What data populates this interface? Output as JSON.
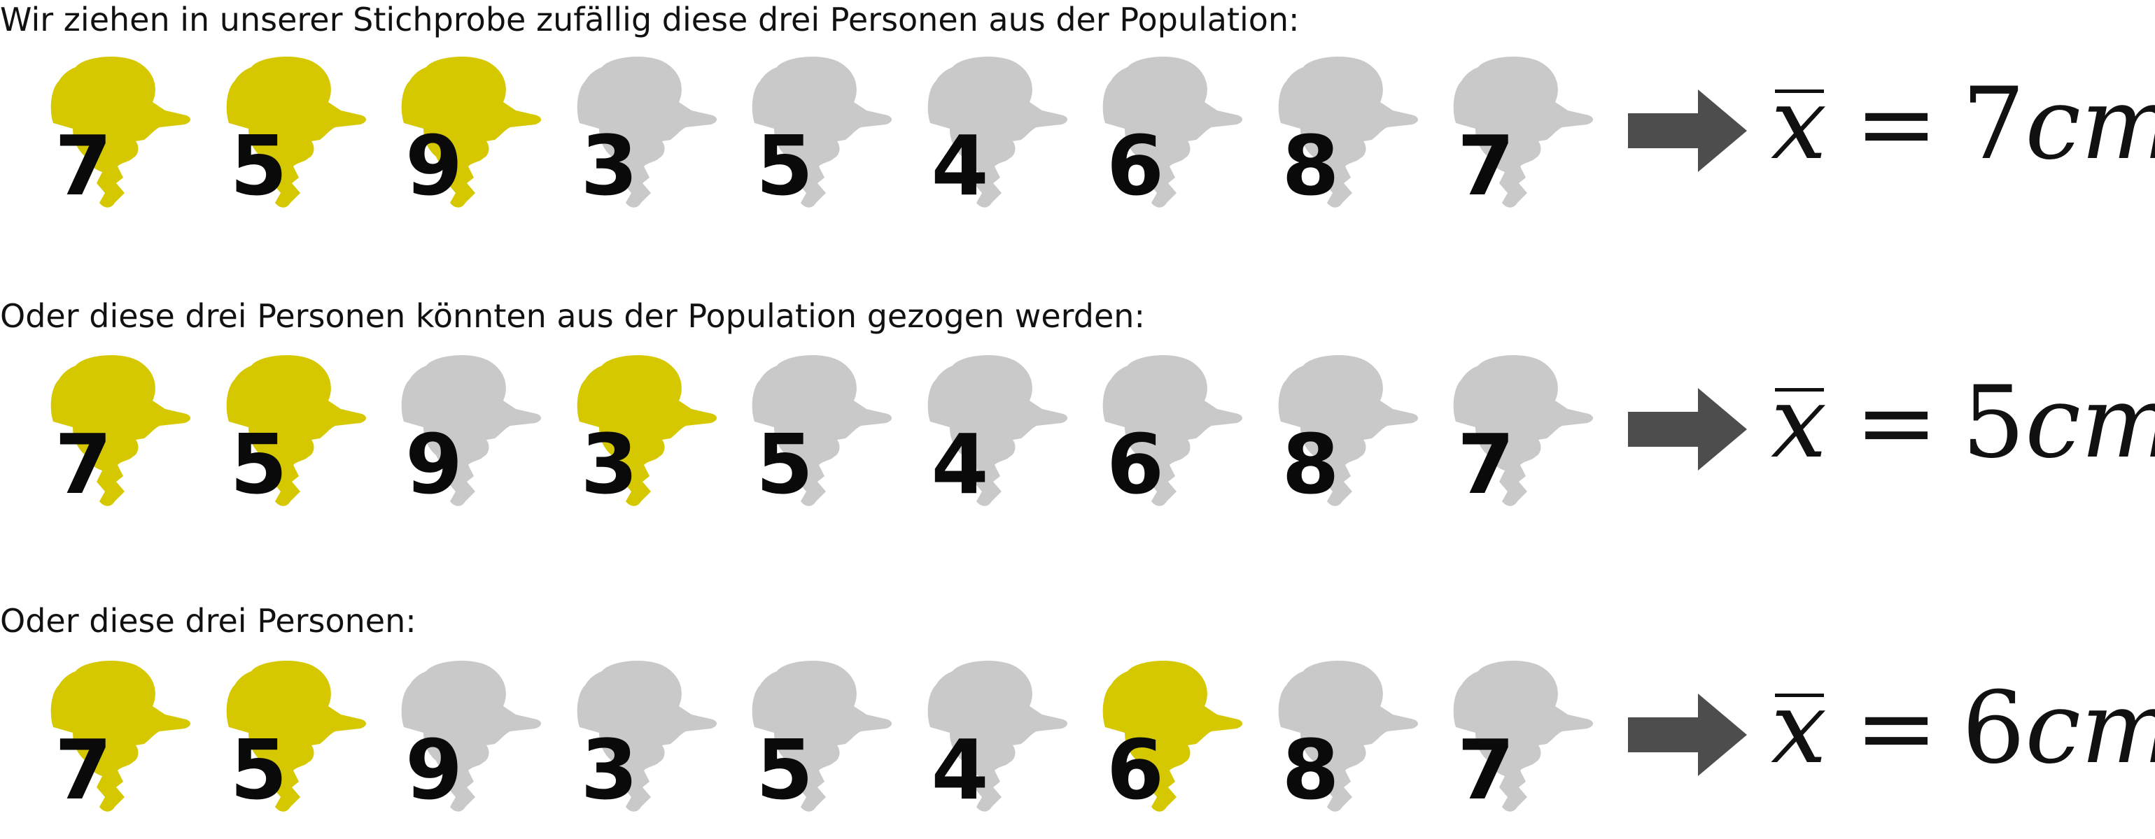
{
  "colors": {
    "selected": "#d6c800",
    "unselected": "#c9c9c9",
    "arrow": "#4d4d4d",
    "number": "#0a0a0a"
  },
  "rows": [
    {
      "caption": "Wir ziehen in unserer Stichprobe zufällig diese drei Personen aus der Population:",
      "people": [
        {
          "value": "7",
          "selected": true
        },
        {
          "value": "5",
          "selected": true
        },
        {
          "value": "9",
          "selected": true
        },
        {
          "value": "3",
          "selected": false
        },
        {
          "value": "5",
          "selected": false
        },
        {
          "value": "4",
          "selected": false
        },
        {
          "value": "6",
          "selected": false
        },
        {
          "value": "8",
          "selected": false
        },
        {
          "value": "7",
          "selected": false
        }
      ],
      "result": {
        "symbol": "x",
        "equals": "=",
        "value": "7",
        "unit": "cm"
      }
    },
    {
      "caption": "Oder diese drei Personen könnten aus der Population gezogen werden:",
      "people": [
        {
          "value": "7",
          "selected": true
        },
        {
          "value": "5",
          "selected": true
        },
        {
          "value": "9",
          "selected": false
        },
        {
          "value": "3",
          "selected": true
        },
        {
          "value": "5",
          "selected": false
        },
        {
          "value": "4",
          "selected": false
        },
        {
          "value": "6",
          "selected": false
        },
        {
          "value": "8",
          "selected": false
        },
        {
          "value": "7",
          "selected": false
        }
      ],
      "result": {
        "symbol": "x",
        "equals": "=",
        "value": "5",
        "unit": "cm"
      }
    },
    {
      "caption": "Oder diese drei Personen:",
      "people": [
        {
          "value": "7",
          "selected": true
        },
        {
          "value": "5",
          "selected": true
        },
        {
          "value": "9",
          "selected": false
        },
        {
          "value": "3",
          "selected": false
        },
        {
          "value": "5",
          "selected": false
        },
        {
          "value": "4",
          "selected": false
        },
        {
          "value": "6",
          "selected": true
        },
        {
          "value": "8",
          "selected": false
        },
        {
          "value": "7",
          "selected": false
        }
      ],
      "result": {
        "symbol": "x",
        "equals": "=",
        "value": "6",
        "unit": "cm"
      }
    }
  ]
}
